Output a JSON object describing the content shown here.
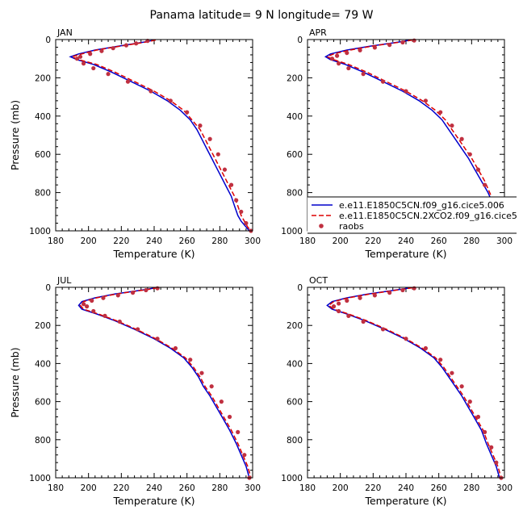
{
  "figure": {
    "title": "Panama  latitude= 9 N longitude= 79 W"
  },
  "chart_data": [
    {
      "type": "line",
      "panel": "JAN",
      "xlabel": "Temperature (K)",
      "ylabel": "Pressure (mb)",
      "xlim": [
        180,
        300
      ],
      "ylim": [
        0,
        1000
      ],
      "y_inverted": true,
      "xticks": [
        180,
        200,
        220,
        240,
        260,
        280,
        300
      ],
      "yticks": [
        0,
        200,
        400,
        600,
        800,
        1000
      ],
      "series": [
        {
          "name": "e.e11.E1850C5CN.f09_g16.cice5.006",
          "color": "#0000cc",
          "style": "solid",
          "x": [
            240,
            236,
            229,
            218,
            204,
            194,
            189,
            193,
            203,
            214,
            226,
            238,
            248,
            256,
            262,
            266,
            269,
            272,
            275,
            278,
            281,
            284,
            287,
            289,
            291,
            293,
            296,
            298
          ],
          "y": [
            2,
            10,
            20,
            35,
            55,
            75,
            90,
            105,
            130,
            170,
            220,
            270,
            320,
            370,
            420,
            470,
            520,
            570,
            620,
            670,
            720,
            770,
            820,
            870,
            920,
            950,
            980,
            1000
          ]
        },
        {
          "name": "e.e11.E1850C5CN.2XCO2.f09_g16.cice5",
          "color": "#dd0000",
          "style": "dashed",
          "x": [
            241,
            237,
            230,
            219,
            205,
            196,
            190,
            194,
            205,
            216,
            228,
            240,
            250,
            258,
            263,
            268,
            271,
            274,
            277,
            280,
            283,
            286,
            289,
            291,
            293,
            295,
            297,
            299
          ],
          "y": [
            2,
            10,
            20,
            35,
            55,
            75,
            90,
            105,
            130,
            170,
            220,
            270,
            320,
            370,
            420,
            470,
            520,
            570,
            620,
            670,
            720,
            770,
            820,
            870,
            920,
            950,
            980,
            1000
          ]
        },
        {
          "name": "raobs",
          "color": "#c03040",
          "style": "markers",
          "x": [
            236,
            229,
            223,
            215,
            208,
            201,
            195,
            193,
            197,
            203,
            212,
            224,
            238,
            250,
            260,
            268,
            274,
            279,
            283,
            287,
            290,
            293,
            296,
            299
          ],
          "y": [
            7,
            20,
            30,
            45,
            60,
            75,
            90,
            100,
            125,
            150,
            180,
            220,
            270,
            320,
            380,
            450,
            520,
            600,
            680,
            760,
            840,
            900,
            960,
            1000
          ]
        }
      ]
    },
    {
      "type": "line",
      "panel": "APR",
      "xlabel": "Temperature (K)",
      "ylabel": "",
      "xlim": [
        180,
        300
      ],
      "ylim": [
        0,
        1000
      ],
      "y_inverted": true,
      "xticks": [
        180,
        200,
        220,
        240,
        260,
        280,
        300
      ],
      "yticks": [
        0,
        200,
        400,
        600,
        800,
        1000
      ],
      "series": [
        {
          "name": "e.e11.E1850C5CN.f09_g16.cice5.006",
          "color": "#0000cc",
          "style": "solid",
          "x": [
            243,
            238,
            230,
            218,
            204,
            194,
            191,
            194,
            203,
            214,
            226,
            238,
            248,
            256,
            262,
            266,
            270,
            274,
            278,
            282,
            286,
            290,
            293,
            296,
            298,
            300
          ],
          "y": [
            2,
            10,
            20,
            35,
            55,
            75,
            90,
            105,
            130,
            170,
            220,
            270,
            320,
            370,
            420,
            470,
            520,
            570,
            620,
            680,
            740,
            800,
            860,
            920,
            970,
            1000
          ]
        },
        {
          "name": "e.e11.E1850C5CN.2XCO2.f09_g16.cice5",
          "color": "#dd0000",
          "style": "dashed",
          "x": [
            244,
            239,
            231,
            219,
            206,
            196,
            192,
            196,
            205,
            216,
            228,
            240,
            250,
            258,
            264,
            268,
            272,
            276,
            280,
            284,
            288,
            291,
            294,
            297,
            299,
            300
          ],
          "y": [
            2,
            10,
            20,
            35,
            55,
            75,
            90,
            105,
            130,
            170,
            220,
            270,
            320,
            370,
            420,
            470,
            520,
            570,
            620,
            680,
            740,
            800,
            860,
            920,
            970,
            1000
          ]
        },
        {
          "name": "raobs",
          "color": "#c03040",
          "style": "markers",
          "x": [
            245,
            238,
            230,
            221,
            212,
            204,
            198,
            195,
            199,
            205,
            214,
            226,
            240,
            252,
            261,
            268,
            274,
            279,
            284,
            288,
            292,
            296,
            299
          ],
          "y": [
            5,
            15,
            28,
            42,
            56,
            70,
            85,
            100,
            125,
            150,
            180,
            220,
            270,
            320,
            380,
            450,
            520,
            600,
            680,
            760,
            840,
            920,
            1000
          ]
        }
      ]
    },
    {
      "type": "line",
      "panel": "JUL",
      "xlabel": "Temperature (K)",
      "ylabel": "Pressure (mb)",
      "xlim": [
        180,
        300
      ],
      "ylim": [
        0,
        1000
      ],
      "y_inverted": true,
      "xticks": [
        180,
        200,
        220,
        240,
        260,
        280,
        300
      ],
      "yticks": [
        0,
        200,
        400,
        600,
        800,
        1000
      ],
      "series": [
        {
          "name": "e.e11.E1850C5CN.f09_g16.cice5.006",
          "color": "#0000cc",
          "style": "solid",
          "x": [
            241,
            236,
            228,
            216,
            204,
            196,
            194,
            196,
            205,
            216,
            228,
            240,
            250,
            258,
            263,
            267,
            270,
            274,
            278,
            282,
            286,
            290,
            293,
            296,
            298
          ],
          "y": [
            2,
            10,
            20,
            35,
            55,
            75,
            95,
            115,
            140,
            175,
            220,
            270,
            320,
            370,
            420,
            470,
            520,
            570,
            630,
            690,
            750,
            820,
            880,
            940,
            1000
          ]
        },
        {
          "name": "e.e11.E1850C5CN.2XCO2.f09_g16.cice5",
          "color": "#dd0000",
          "style": "dashed",
          "x": [
            242,
            237,
            229,
            217,
            205,
            197,
            195,
            197,
            206,
            217,
            229,
            241,
            251,
            259,
            264,
            268,
            271,
            275,
            279,
            283,
            287,
            291,
            294,
            297,
            299
          ],
          "y": [
            2,
            10,
            20,
            35,
            55,
            75,
            95,
            115,
            140,
            175,
            220,
            270,
            320,
            370,
            420,
            470,
            520,
            570,
            630,
            690,
            750,
            820,
            880,
            940,
            1000
          ]
        },
        {
          "name": "raobs",
          "color": "#c03040",
          "style": "markers",
          "x": [
            242,
            235,
            227,
            218,
            209,
            202,
            197,
            199,
            203,
            210,
            219,
            230,
            242,
            253,
            262,
            269,
            275,
            281,
            286,
            291,
            295,
            298
          ],
          "y": [
            5,
            15,
            28,
            42,
            56,
            70,
            88,
            100,
            125,
            150,
            180,
            220,
            270,
            320,
            380,
            450,
            520,
            600,
            680,
            760,
            880,
            1000
          ]
        }
      ]
    },
    {
      "type": "line",
      "panel": "OCT",
      "xlabel": "Temperature (K)",
      "ylabel": "",
      "xlim": [
        180,
        300
      ],
      "ylim": [
        0,
        1000
      ],
      "y_inverted": true,
      "xticks": [
        180,
        200,
        220,
        240,
        260,
        280,
        300
      ],
      "yticks": [
        0,
        200,
        400,
        600,
        800,
        1000
      ],
      "series": [
        {
          "name": "e.e11.E1850C5CN.f09_g16.cice5.006",
          "color": "#0000cc",
          "style": "solid",
          "x": [
            243,
            237,
            229,
            217,
            204,
            195,
            192,
            195,
            204,
            215,
            227,
            239,
            249,
            257,
            262,
            266,
            270,
            274,
            278,
            282,
            286,
            289,
            292,
            295,
            297
          ],
          "y": [
            2,
            10,
            20,
            35,
            55,
            75,
            95,
            115,
            140,
            175,
            220,
            270,
            320,
            370,
            420,
            470,
            520,
            570,
            630,
            690,
            750,
            820,
            880,
            940,
            1000
          ]
        },
        {
          "name": "e.e11.E1850C5CN.2XCO2.f09_g16.cice5",
          "color": "#dd0000",
          "style": "dashed",
          "x": [
            244,
            238,
            230,
            218,
            205,
            196,
            193,
            196,
            205,
            216,
            228,
            240,
            250,
            258,
            263,
            267,
            271,
            275,
            279,
            283,
            287,
            290,
            293,
            296,
            298
          ],
          "y": [
            2,
            10,
            20,
            35,
            55,
            75,
            95,
            115,
            140,
            175,
            220,
            270,
            320,
            370,
            420,
            470,
            520,
            570,
            630,
            690,
            750,
            820,
            880,
            940,
            1000
          ]
        },
        {
          "name": "raobs",
          "color": "#c03040",
          "style": "markers",
          "x": [
            245,
            238,
            230,
            221,
            212,
            204,
            199,
            196,
            199,
            205,
            214,
            226,
            240,
            252,
            261,
            268,
            274,
            279,
            284,
            288,
            292,
            295,
            298
          ],
          "y": [
            5,
            15,
            28,
            42,
            56,
            70,
            85,
            100,
            125,
            150,
            180,
            220,
            270,
            320,
            380,
            450,
            520,
            600,
            680,
            760,
            840,
            920,
            1000
          ]
        }
      ]
    }
  ],
  "legend": {
    "placement": "inside APR panel, lower part",
    "entries": [
      {
        "label": "e.e11.E1850C5CN.f09_g16.cice5.006",
        "color": "#0000cc",
        "style": "solid"
      },
      {
        "label": "e.e11.E1850C5CN.2XCO2.f09_g16.cice5",
        "color": "#dd0000",
        "style": "dashed"
      },
      {
        "label": "raobs",
        "color": "#c03040",
        "style": "markers"
      }
    ]
  }
}
